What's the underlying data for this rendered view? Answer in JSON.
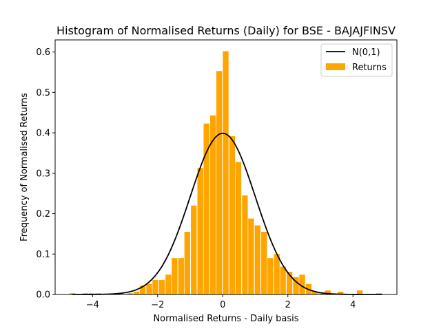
{
  "chart_data": {
    "type": "bar",
    "title": "Histogram of Normalised Returns (Daily) for BSE - BAJAJFINSV",
    "xlabel": "Normalised Returns - Daily basis",
    "ylabel": "Frequency of Normalised Returns",
    "xlim": [
      -5.15,
      5.35
    ],
    "ylim": [
      0,
      0.63
    ],
    "grid": false,
    "legend_position": "top-right",
    "x_ticks": [
      -4,
      -2,
      0,
      2,
      4
    ],
    "x_tick_labels": [
      "−4",
      "−2",
      "0",
      "2",
      "4"
    ],
    "y_ticks": [
      0.0,
      0.1,
      0.2,
      0.3,
      0.4,
      0.5,
      0.6
    ],
    "y_tick_labels": [
      "0.0",
      "0.1",
      "0.2",
      "0.3",
      "0.4",
      "0.5",
      "0.6"
    ],
    "bin_width": 0.196,
    "bins": [
      {
        "x": -4.62,
        "value": 0.003
      },
      {
        "x": -4.22,
        "value": 0.003
      },
      {
        "x": -4.03,
        "value": 0.003
      },
      {
        "x": -3.83,
        "value": 0.003
      },
      {
        "x": -2.85,
        "value": 0.003
      },
      {
        "x": -2.65,
        "value": 0.007
      },
      {
        "x": -2.46,
        "value": 0.022
      },
      {
        "x": -2.26,
        "value": 0.026
      },
      {
        "x": -2.07,
        "value": 0.036
      },
      {
        "x": -1.87,
        "value": 0.036
      },
      {
        "x": -1.67,
        "value": 0.049
      },
      {
        "x": -1.48,
        "value": 0.09
      },
      {
        "x": -1.28,
        "value": 0.09
      },
      {
        "x": -1.09,
        "value": 0.155
      },
      {
        "x": -0.89,
        "value": 0.22
      },
      {
        "x": -0.69,
        "value": 0.313
      },
      {
        "x": -0.5,
        "value": 0.423
      },
      {
        "x": -0.3,
        "value": 0.443
      },
      {
        "x": -0.11,
        "value": 0.553
      },
      {
        "x": 0.09,
        "value": 0.602
      },
      {
        "x": 0.29,
        "value": 0.392
      },
      {
        "x": 0.48,
        "value": 0.328
      },
      {
        "x": 0.68,
        "value": 0.245
      },
      {
        "x": 0.87,
        "value": 0.188
      },
      {
        "x": 1.07,
        "value": 0.171
      },
      {
        "x": 1.27,
        "value": 0.155
      },
      {
        "x": 1.46,
        "value": 0.09
      },
      {
        "x": 1.66,
        "value": 0.1
      },
      {
        "x": 1.85,
        "value": 0.069
      },
      {
        "x": 2.05,
        "value": 0.056
      },
      {
        "x": 2.25,
        "value": 0.043
      },
      {
        "x": 2.44,
        "value": 0.049
      },
      {
        "x": 2.64,
        "value": 0.026
      },
      {
        "x": 2.83,
        "value": 0.007
      },
      {
        "x": 3.03,
        "value": 0.003
      },
      {
        "x": 3.23,
        "value": 0.01
      },
      {
        "x": 3.62,
        "value": 0.007
      },
      {
        "x": 4.21,
        "value": 0.01
      },
      {
        "x": 4.8,
        "value": 0.003
      }
    ],
    "series": [
      {
        "name": "N(0,1)",
        "type": "line",
        "color": "#000000",
        "function": "standard-normal-pdf"
      },
      {
        "name": "Returns",
        "type": "bar",
        "color": "#FFA500"
      }
    ]
  }
}
